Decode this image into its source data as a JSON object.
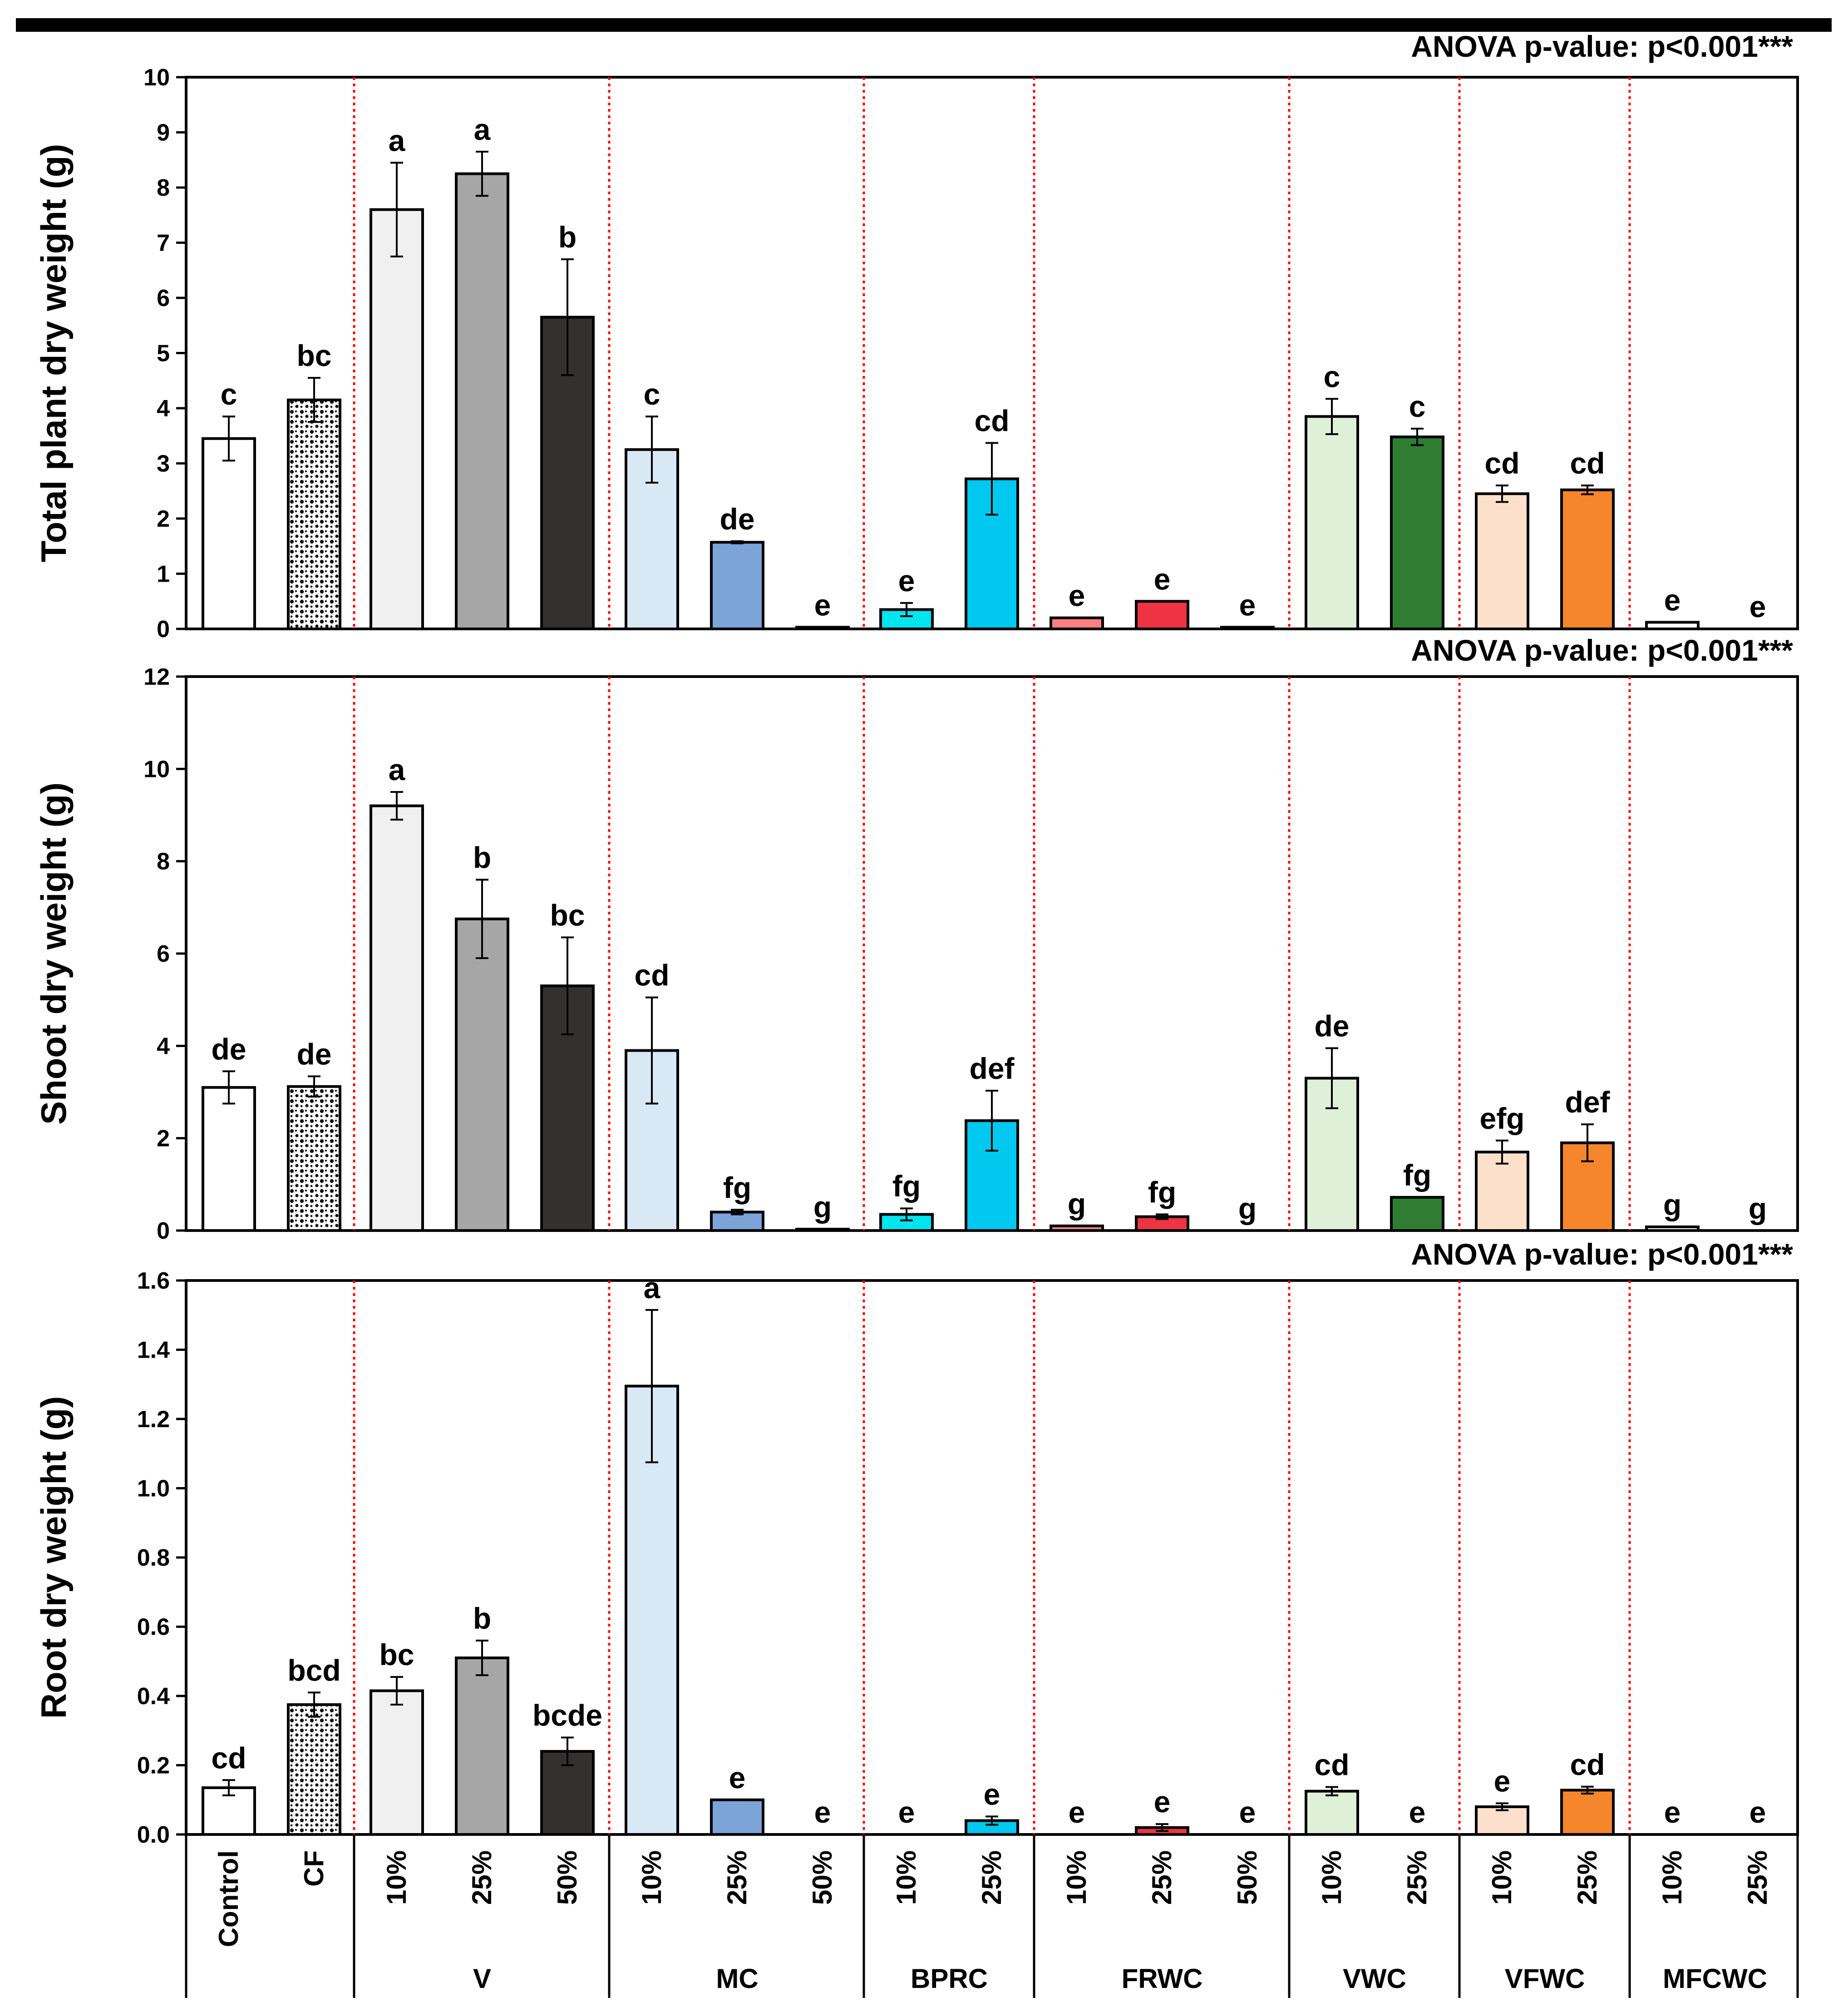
{
  "chart_data": {
    "type": "bar",
    "colors": {
      "V-10": "#f0f0f0",
      "V-25": "#a6a6a6",
      "V-50": "#333030",
      "MC-10": "#d9e8f5",
      "MC-25": "#7ca4d9",
      "MC-50": "#ffffff",
      "BPRC-10": "#00e5ee",
      "BPRC-25": "#00c8ee",
      "FRWC-10": "#ff8080",
      "FRWC-25": "#ee3344",
      "FRWC-50": "#ffffff",
      "VWC-10": "#dff0d8",
      "VWC-25": "#2e7d32",
      "VFWC-10": "#fde0cc",
      "VFWC-25": "#f5862b",
      "MFCWC-10": "#ffffff",
      "MFCWC-25": "#ffffff",
      "Control": "#ffffff",
      "CF": "#ffffff",
      "divider": "#ff0000",
      "axis": "#000000"
    },
    "categories": [
      "Control",
      "CF",
      "10%",
      "25%",
      "50%",
      "10%",
      "25%",
      "50%",
      "10%",
      "25%",
      "10%",
      "25%",
      "50%",
      "10%",
      "25%",
      "10%",
      "25%",
      "10%",
      "25%"
    ],
    "category_keys": [
      "Control",
      "CF",
      "V-10",
      "V-25",
      "V-50",
      "MC-10",
      "MC-25",
      "MC-50",
      "BPRC-10",
      "BPRC-25",
      "FRWC-10",
      "FRWC-25",
      "FRWC-50",
      "VWC-10",
      "VWC-25",
      "VFWC-10",
      "VFWC-25",
      "MFCWC-10",
      "MFCWC-25"
    ],
    "groups": [
      {
        "label": "",
        "span": [
          0,
          1
        ]
      },
      {
        "label": "V",
        "span": [
          2,
          4
        ]
      },
      {
        "label": "MC",
        "span": [
          5,
          7
        ]
      },
      {
        "label": "BPRC",
        "span": [
          8,
          9
        ]
      },
      {
        "label": "FRWC",
        "span": [
          10,
          12
        ]
      },
      {
        "label": "VWC",
        "span": [
          13,
          14
        ]
      },
      {
        "label": "VFWC",
        "span": [
          15,
          16
        ]
      },
      {
        "label": "MFCWC",
        "span": [
          17,
          18
        ]
      }
    ],
    "panels": [
      {
        "ylabel": "Total plant dry weight (g)",
        "anova": "ANOVA p-value: p<0.001***",
        "ylim": [
          0,
          10
        ],
        "yticks": [
          "0",
          "1",
          "2",
          "3",
          "4",
          "5",
          "6",
          "7",
          "8",
          "9",
          "10"
        ],
        "values": [
          3.45,
          4.15,
          7.6,
          8.25,
          5.65,
          3.25,
          1.57,
          0.03,
          0.35,
          2.72,
          0.2,
          0.5,
          0.03,
          3.85,
          3.48,
          2.45,
          2.52,
          0.12,
          0.0
        ],
        "errors": [
          0.4,
          0.4,
          0.85,
          0.4,
          1.05,
          0.6,
          0.02,
          0.0,
          0.12,
          0.65,
          0.0,
          0.0,
          0.0,
          0.32,
          0.15,
          0.15,
          0.08,
          0.0,
          0.0
        ],
        "letters": [
          "c",
          "bc",
          "a",
          "a",
          "b",
          "c",
          "de",
          "e",
          "e",
          "cd",
          "e",
          "e",
          "e",
          "c",
          "c",
          "cd",
          "cd",
          "e",
          "e"
        ]
      },
      {
        "ylabel": "Shoot dry weight (g)",
        "anova": "ANOVA p-value: p<0.001***",
        "ylim": [
          0,
          12
        ],
        "yticks": [
          "0",
          "2",
          "4",
          "6",
          "8",
          "10",
          "12"
        ],
        "values": [
          3.1,
          3.12,
          9.2,
          6.75,
          5.3,
          3.9,
          0.4,
          0.03,
          0.35,
          2.38,
          0.1,
          0.3,
          0.0,
          3.3,
          0.72,
          1.7,
          1.9,
          0.08,
          0.0
        ],
        "errors": [
          0.35,
          0.22,
          0.3,
          0.85,
          1.05,
          1.15,
          0.05,
          0.0,
          0.13,
          0.65,
          0.0,
          0.05,
          0.0,
          0.65,
          0.0,
          0.25,
          0.4,
          0.0,
          0.0
        ],
        "letters": [
          "de",
          "de",
          "a",
          "b",
          "bc",
          "cd",
          "fg",
          "g",
          "fg",
          "def",
          "g",
          "fg",
          "g",
          "de",
          "fg",
          "efg",
          "def",
          "g",
          "g"
        ]
      },
      {
        "ylabel": "Root dry weight (g)",
        "anova": "ANOVA p-value: p<0.001***",
        "ylim": [
          0,
          1.6
        ],
        "yticks": [
          "0.0",
          "0.2",
          "0.4",
          "0.6",
          "0.8",
          "1.0",
          "1.2",
          "1.4",
          "1.6"
        ],
        "values": [
          0.135,
          0.375,
          0.415,
          0.51,
          0.24,
          1.295,
          0.1,
          0.0,
          0.0,
          0.04,
          0.0,
          0.02,
          0.0,
          0.125,
          0.0,
          0.08,
          0.128,
          0.0,
          0.0
        ],
        "errors": [
          0.022,
          0.035,
          0.04,
          0.05,
          0.04,
          0.22,
          0.0,
          0.0,
          0.0,
          0.012,
          0.0,
          0.01,
          0.0,
          0.012,
          0.0,
          0.01,
          0.01,
          0.0,
          0.0
        ],
        "letters": [
          "cd",
          "bcd",
          "bc",
          "b",
          "bcde",
          "a",
          "e",
          "e",
          "e",
          "e",
          "e",
          "e",
          "e",
          "cd",
          "e",
          "e",
          "cd",
          "e",
          "e"
        ]
      }
    ]
  }
}
